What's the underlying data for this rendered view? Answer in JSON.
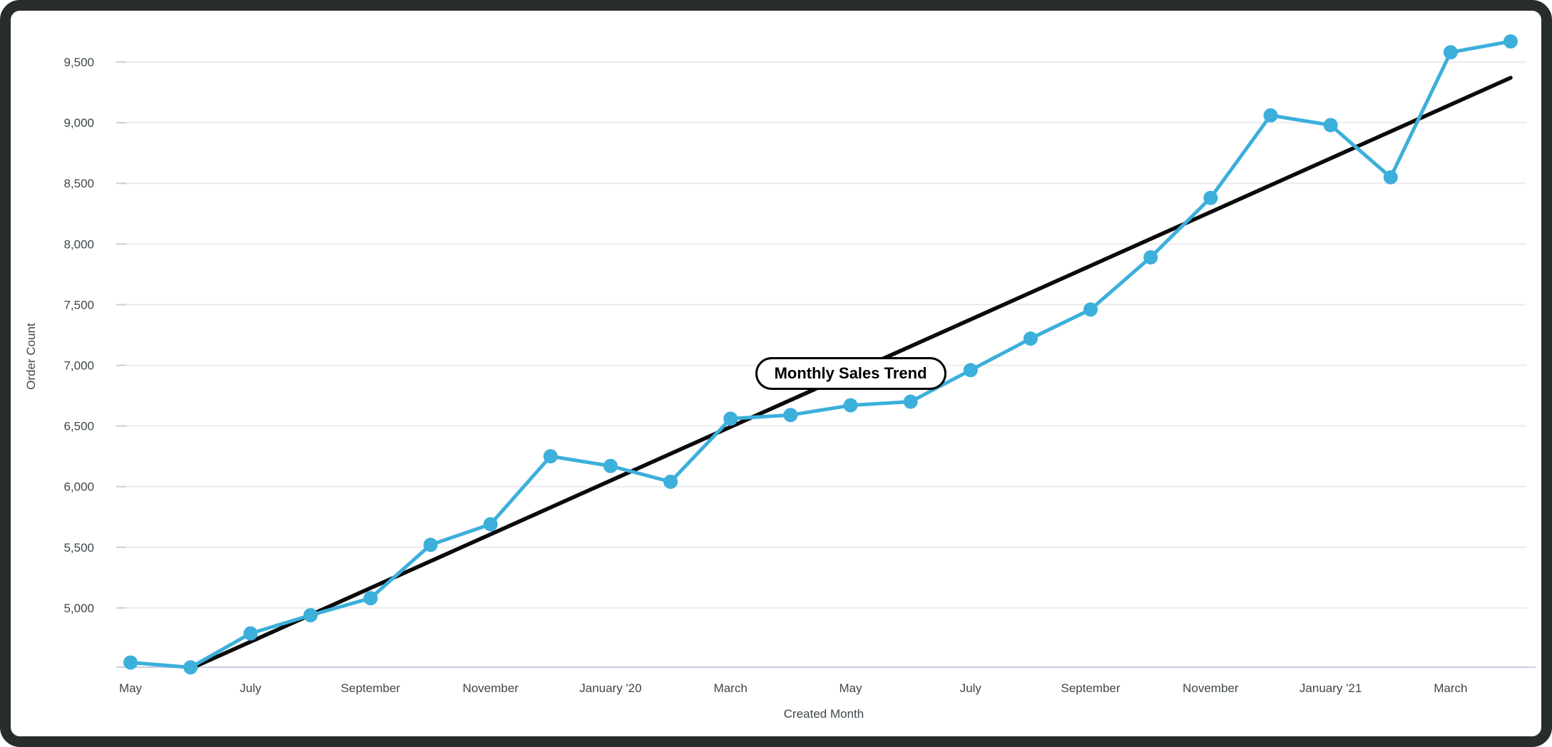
{
  "frame": {
    "border_color": "#272d2c",
    "background": "#ffffff"
  },
  "annotation": {
    "label": "Monthly Sales Trend",
    "anchor_index": 12,
    "anchor_value": 6935
  },
  "chart_data": {
    "type": "line",
    "title": "Monthly Sales Trend",
    "xlabel": "Created Month",
    "ylabel": "Order Count",
    "x": [
      "May '19",
      "June '19",
      "July '19",
      "August '19",
      "September '19",
      "October '19",
      "November '19",
      "December '19",
      "January '20",
      "February '20",
      "March '20",
      "April '20",
      "May '20",
      "June '20",
      "July '20",
      "August '20",
      "September '20",
      "October '20",
      "November '20",
      "December '20",
      "January '21",
      "February '21",
      "March '21",
      "April '21"
    ],
    "x_tick_indices": [
      0,
      2,
      4,
      6,
      8,
      10,
      12,
      14,
      16,
      18,
      20,
      22
    ],
    "x_tick_labels": [
      "May",
      "July",
      "September",
      "November",
      "January '20",
      "March",
      "May",
      "July",
      "September",
      "November",
      "January '21",
      "March"
    ],
    "series": [
      {
        "name": "Order Count",
        "kind": "line-markers",
        "color": "#3cafdb",
        "values": [
          4550,
          4510,
          4790,
          4940,
          5080,
          5520,
          5690,
          6250,
          6170,
          6040,
          6560,
          6590,
          6670,
          6700,
          6960,
          7220,
          7460,
          7890,
          8380,
          9060,
          8980,
          8550,
          9580,
          9670
        ]
      },
      {
        "name": "Linear Trend",
        "kind": "trend-line",
        "color": "#0b0b0b",
        "points": [
          {
            "index": 1,
            "value": 4500
          },
          {
            "index": 23,
            "value": 9370
          }
        ]
      }
    ],
    "ylim": [
      4500,
      9850
    ],
    "yticks": [
      5000,
      5500,
      6000,
      6500,
      7000,
      7500,
      8000,
      8500,
      9000,
      9500
    ],
    "grid": true,
    "legend": "none",
    "colors": {
      "grid_line": "#ebebeb",
      "tick_mark": "#d0d0d0",
      "axis_line": "#c8cee2",
      "label_text": "#3e474b"
    }
  }
}
